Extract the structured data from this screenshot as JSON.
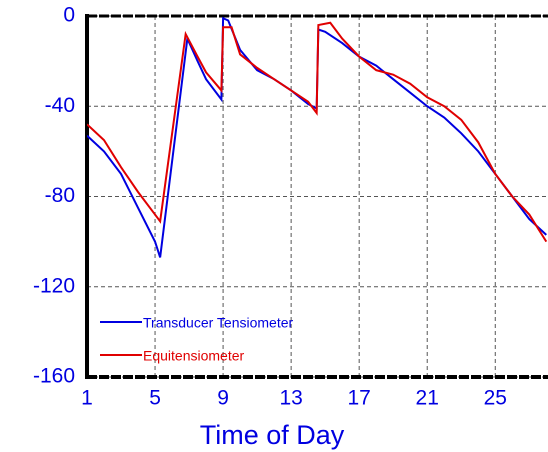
{
  "chart_data": {
    "type": "line",
    "xlabel": "Time of Day",
    "xlim": [
      1,
      28.1
    ],
    "ylim": [
      -160,
      0
    ],
    "xticks": [
      1,
      5,
      9,
      13,
      17,
      21,
      25
    ],
    "yticks": [
      0,
      -40,
      -80,
      -120,
      -160
    ],
    "grid": true,
    "legend": "lower left",
    "series": [
      {
        "name": "Transducer Tensiometer",
        "color": "#0000e0",
        "x": [
          1,
          2,
          3,
          4,
          5,
          5.3,
          6.9,
          7.5,
          8,
          8.9,
          9.0,
          9.3,
          10,
          11,
          12,
          13,
          14,
          14.5,
          14.6,
          15,
          16,
          17,
          18,
          19,
          20,
          21,
          22,
          23,
          24,
          25,
          26,
          27,
          28
        ],
        "values": [
          -53,
          -60,
          -70,
          -85,
          -100,
          -107,
          -10,
          -20,
          -28,
          -37,
          -1,
          -2,
          -15,
          -24,
          -28,
          -33,
          -39,
          -41,
          -6,
          -7,
          -12,
          -18,
          -22,
          -28,
          -34,
          -40,
          -45,
          -52,
          -60,
          -70,
          -80,
          -90,
          -97
        ]
      },
      {
        "name": "Equitensiometer",
        "color": "#e00000",
        "x": [
          1,
          2,
          3,
          4,
          5,
          5.3,
          6.8,
          7.5,
          8,
          8.9,
          9.0,
          9.5,
          10,
          11,
          12,
          13,
          14,
          14.5,
          14.6,
          15.3,
          16,
          17,
          18,
          19,
          20,
          21,
          22,
          23,
          24,
          25,
          26,
          27,
          28
        ],
        "values": [
          -48,
          -55,
          -67,
          -78,
          -88,
          -91,
          -8,
          -18,
          -25,
          -33,
          -5,
          -5,
          -17,
          -23,
          -28,
          -33,
          -38,
          -43,
          -4,
          -3,
          -10,
          -18,
          -24,
          -26,
          -30,
          -36,
          -40,
          -46,
          -56,
          -70,
          -80,
          -88,
          -100
        ]
      }
    ]
  }
}
